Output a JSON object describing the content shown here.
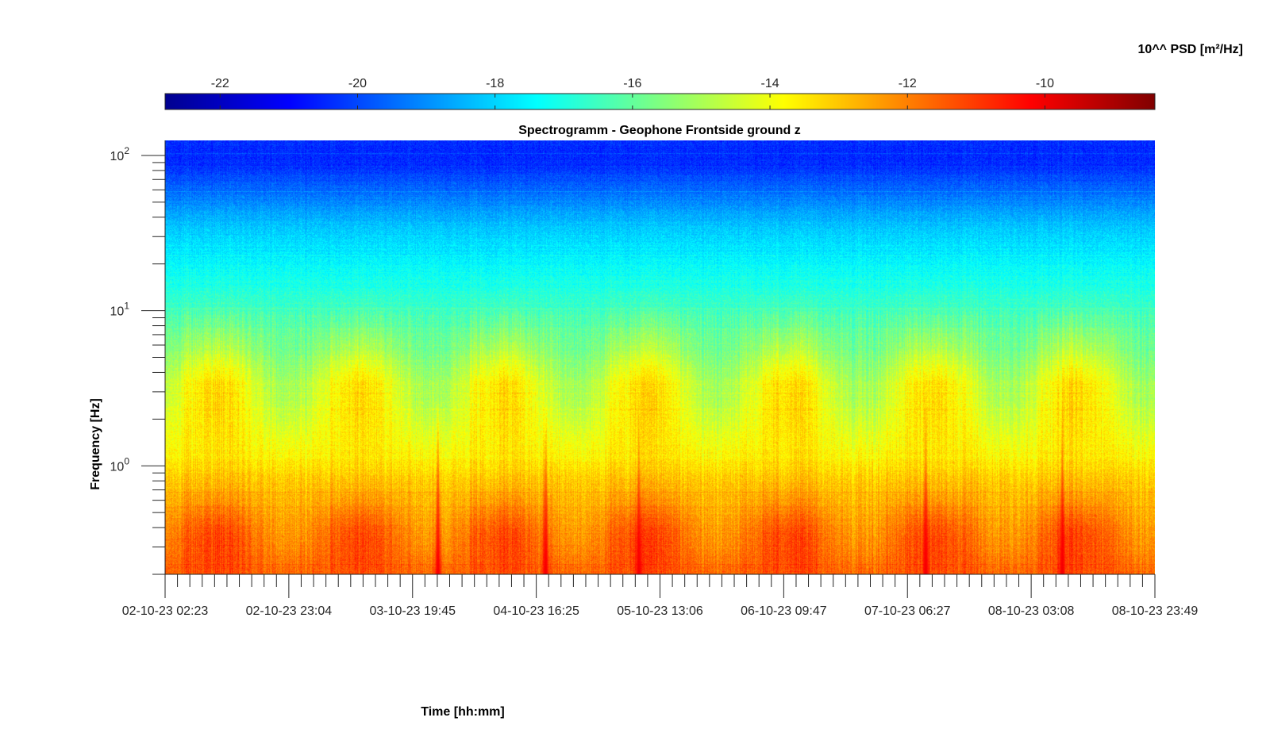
{
  "chart_data": {
    "type": "heatmap",
    "title": "Spectrogramm - Geophone Frontside ground z",
    "xlabel": "Time [hh:mm]",
    "ylabel": "Frequency [Hz]",
    "y_scale": "log",
    "ylim": [
      0.2,
      125
    ],
    "x_ticks": [
      "02-10-23 02:23",
      "02-10-23 23:04",
      "03-10-23 19:45",
      "04-10-23 16:25",
      "05-10-23 13:06",
      "06-10-23 09:47",
      "07-10-23 06:27",
      "08-10-23 03:08",
      "08-10-23 23:49"
    ],
    "y_ticks": [
      {
        "base": "10",
        "exp": "0",
        "value": 1
      },
      {
        "base": "10",
        "exp": "1",
        "value": 10
      },
      {
        "base": "10",
        "exp": "2",
        "value": 100
      }
    ],
    "colorbar": {
      "label": "10^^ PSD [m²/Hz]",
      "colormap": "jet",
      "range": [
        -22.8,
        -8.4
      ],
      "ticks": [
        "-22",
        "-20",
        "-18",
        "-16",
        "-14",
        "-12",
        "-10"
      ],
      "tick_values": [
        -22,
        -20,
        -18,
        -16,
        -14,
        -12,
        -10
      ]
    },
    "grid": false,
    "data_summary": {
      "time_span_days": [
        0,
        6.9
      ],
      "frequency_bands_hz": [
        {
          "range": [
            0.2,
            0.7
          ],
          "level": -11.8
        },
        {
          "range": [
            0.7,
            2
          ],
          "level": -13.6
        },
        {
          "range": [
            2,
            6
          ],
          "level": -14.3
        },
        {
          "range": [
            6,
            20
          ],
          "level": -16.6
        },
        {
          "range": [
            20,
            60
          ],
          "level": -18.2
        },
        {
          "range": [
            60,
            125
          ],
          "level": -20.4
        }
      ],
      "spike_events_days": [
        1.9,
        2.65,
        3.3,
        5.3,
        6.25
      ],
      "spike_peak_level": -10.0
    }
  }
}
